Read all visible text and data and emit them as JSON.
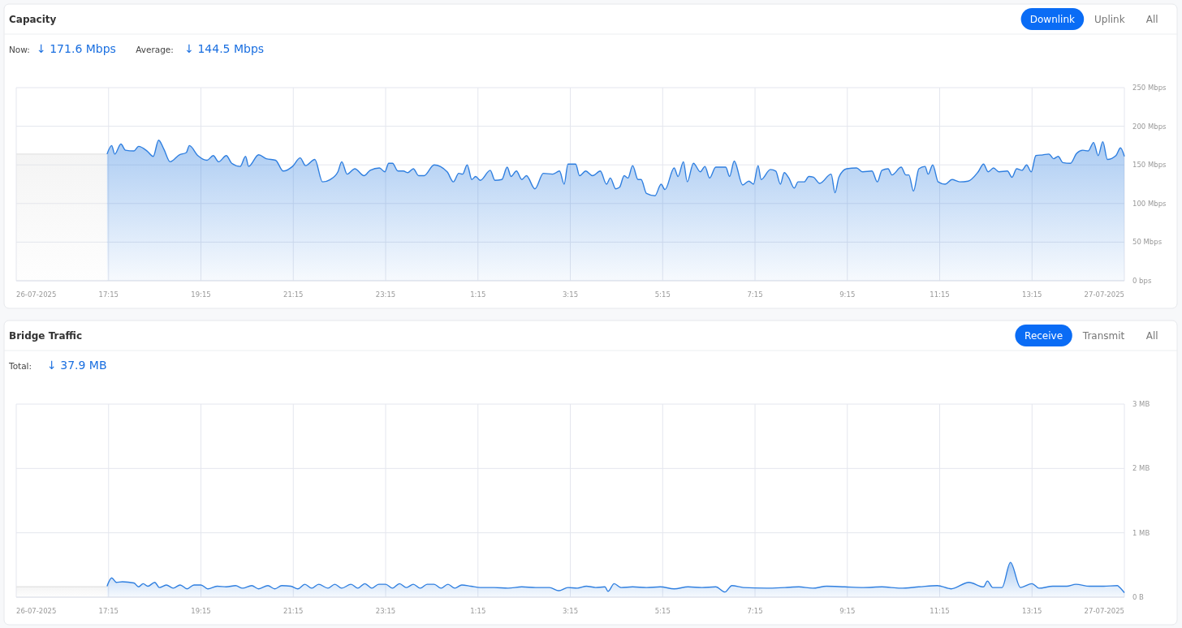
{
  "chart_data": [
    {
      "type": "area",
      "title": "Capacity",
      "annotations": [
        "Now:",
        "↓ 171.6 Mbps",
        "Average:",
        "↓ 144.5 Mbps",
        "Downlink",
        "Uplink",
        "All"
      ],
      "xlim": [
        "2025-07-26T15:15",
        "2025-07-27T15:15"
      ],
      "xticks": [
        {
          "value": "2025-07-26T15:15",
          "label": "26-07-2025"
        },
        {
          "value": "2025-07-26T17:15",
          "label": "17:15"
        },
        {
          "value": "2025-07-26T19:15",
          "label": "19:15"
        },
        {
          "value": "2025-07-26T21:15",
          "label": "21:15"
        },
        {
          "value": "2025-07-26T23:15",
          "label": "23:15"
        },
        {
          "value": "2025-07-27T01:15",
          "label": "1:15"
        },
        {
          "value": "2025-07-27T03:15",
          "label": "3:15"
        },
        {
          "value": "2025-07-27T05:15",
          "label": "5:15"
        },
        {
          "value": "2025-07-27T07:15",
          "label": "7:15"
        },
        {
          "value": "2025-07-27T09:15",
          "label": "9:15"
        },
        {
          "value": "2025-07-27T11:15",
          "label": "11:15"
        },
        {
          "value": "2025-07-27T13:15",
          "label": "13:15"
        },
        {
          "value": "2025-07-27T15:15",
          "label": "27-07-2025"
        }
      ],
      "ylim": [
        0,
        250
      ],
      "yticks": [
        {
          "value": 0,
          "label": "0 bps"
        },
        {
          "value": 50,
          "label": "50 Mbps"
        },
        {
          "value": 100,
          "label": "100 Mbps"
        },
        {
          "value": 150,
          "label": "150 Mbps"
        },
        {
          "value": 200,
          "label": "200 Mbps"
        },
        {
          "value": 250,
          "label": "250 Mbps"
        }
      ],
      "grid": true,
      "series": [
        {
          "color": "#e4e4e4",
          "x": [
            "2025-07-26T15:15",
            "2025-07-26T17:13"
          ],
          "values": [
            164,
            164
          ]
        },
        {
          "color": "#2f7fe0",
          "x": [
            "2025-07-26T17:13",
            "2025-07-26T17:19",
            "2025-07-26T17:23",
            "2025-07-26T17:31",
            "2025-07-26T17:37",
            "2025-07-26T17:48",
            "2025-07-26T17:54",
            "2025-07-26T18:05",
            "2025-07-26T18:13",
            "2025-07-26T18:20",
            "2025-07-26T18:27",
            "2025-07-26T18:35",
            "2025-07-26T18:47",
            "2025-07-26T18:56",
            "2025-07-26T19:00",
            "2025-07-26T19:11",
            "2025-07-26T19:23",
            "2025-07-26T19:31",
            "2025-07-26T19:38",
            "2025-07-26T19:48",
            "2025-07-26T19:55",
            "2025-07-26T20:06",
            "2025-07-26T20:13",
            "2025-07-26T20:17",
            "2025-07-26T20:30",
            "2025-07-26T20:40",
            "2025-07-26T20:52",
            "2025-07-26T21:02",
            "2025-07-26T21:14",
            "2025-07-26T21:24",
            "2025-07-26T21:31",
            "2025-07-26T21:43",
            "2025-07-26T21:53",
            "2025-07-26T22:03",
            "2025-07-26T22:13",
            "2025-07-26T22:18",
            "2025-07-26T22:25",
            "2025-07-26T22:35",
            "2025-07-26T22:47",
            "2025-07-26T22:55",
            "2025-07-26T23:07",
            "2025-07-26T23:14",
            "2025-07-26T23:19",
            "2025-07-26T23:24",
            "2025-07-26T23:31",
            "2025-07-26T23:38",
            "2025-07-26T23:44",
            "2025-07-26T23:51",
            "2025-07-26T23:58",
            "2025-07-27T00:05",
            "2025-07-27T00:18",
            "2025-07-27T00:35",
            "2025-07-27T00:43",
            "2025-07-27T00:50",
            "2025-07-27T00:55",
            "2025-07-27T01:01",
            "2025-07-27T01:07",
            "2025-07-27T01:12",
            "2025-07-27T01:18",
            "2025-07-27T01:31",
            "2025-07-27T01:37",
            "2025-07-27T01:46",
            "2025-07-27T01:53",
            "2025-07-27T01:58",
            "2025-07-27T02:05",
            "2025-07-27T02:12",
            "2025-07-27T02:18",
            "2025-07-27T02:29",
            "2025-07-27T02:40",
            "2025-07-27T02:52",
            "2025-07-27T03:01",
            "2025-07-27T03:07",
            "2025-07-27T03:12",
            "2025-07-27T03:22",
            "2025-07-27T03:27",
            "2025-07-27T03:35",
            "2025-07-27T03:44",
            "2025-07-27T03:54",
            "2025-07-27T04:02",
            "2025-07-27T04:07",
            "2025-07-27T04:14",
            "2025-07-27T04:19",
            "2025-07-27T04:25",
            "2025-07-27T04:30",
            "2025-07-27T04:36",
            "2025-07-27T04:43",
            "2025-07-27T04:47",
            "2025-07-27T04:54",
            "2025-07-27T05:05",
            "2025-07-27T05:13",
            "2025-07-27T05:18",
            "2025-07-27T05:30",
            "2025-07-27T05:35",
            "2025-07-27T05:42",
            "2025-07-27T05:47",
            "2025-07-27T05:55",
            "2025-07-27T06:04",
            "2025-07-27T06:10",
            "2025-07-27T06:16",
            "2025-07-27T06:24",
            "2025-07-27T06:37",
            "2025-07-27T06:42",
            "2025-07-27T06:48",
            "2025-07-27T06:59",
            "2025-07-27T07:07",
            "2025-07-27T07:13",
            "2025-07-27T07:19",
            "2025-07-27T07:23",
            "2025-07-27T07:35",
            "2025-07-27T07:42",
            "2025-07-27T07:48",
            "2025-07-27T07:53",
            "2025-07-27T07:59",
            "2025-07-27T08:06",
            "2025-07-27T08:11",
            "2025-07-27T08:19",
            "2025-07-27T08:25",
            "2025-07-27T08:31",
            "2025-07-27T08:39",
            "2025-07-27T08:54",
            "2025-07-27T08:59",
            "2025-07-27T09:04",
            "2025-07-27T09:14",
            "2025-07-27T09:27",
            "2025-07-27T09:35",
            "2025-07-27T09:47",
            "2025-07-27T09:54",
            "2025-07-27T10:00",
            "2025-07-27T10:08",
            "2025-07-27T10:13",
            "2025-07-27T10:25",
            "2025-07-27T10:31",
            "2025-07-27T10:35",
            "2025-07-27T10:41",
            "2025-07-27T10:48",
            "2025-07-27T10:56",
            "2025-07-27T11:00",
            "2025-07-27T11:06",
            "2025-07-27T11:13",
            "2025-07-27T11:22",
            "2025-07-27T11:31",
            "2025-07-27T11:41",
            "2025-07-27T11:52",
            "2025-07-27T12:05",
            "2025-07-27T12:12",
            "2025-07-27T12:18",
            "2025-07-27T12:25",
            "2025-07-27T12:32",
            "2025-07-27T12:43",
            "2025-07-27T12:49",
            "2025-07-27T12:55",
            "2025-07-27T13:02",
            "2025-07-27T13:08",
            "2025-07-27T13:14",
            "2025-07-27T13:20",
            "2025-07-27T13:29",
            "2025-07-27T13:37",
            "2025-07-27T13:43",
            "2025-07-27T13:49",
            "2025-07-27T13:55",
            "2025-07-27T14:05",
            "2025-07-27T14:13",
            "2025-07-27T14:21",
            "2025-07-27T14:28",
            "2025-07-27T14:35",
            "2025-07-27T14:41",
            "2025-07-27T14:47",
            "2025-07-27T14:53",
            "2025-07-27T15:04",
            "2025-07-27T15:10",
            "2025-07-27T15:15"
          ],
          "values": [
            164,
            175,
            164,
            177,
            169,
            168,
            174,
            168,
            161,
            182,
            170,
            154,
            163,
            166,
            175,
            162,
            156,
            162,
            154,
            162,
            152,
            148,
            161,
            148,
            163,
            158,
            156,
            142,
            148,
            159,
            149,
            157,
            128,
            131,
            141,
            154,
            138,
            145,
            136,
            143,
            146,
            141,
            152,
            152,
            142,
            142,
            140,
            145,
            136,
            136,
            150,
            141,
            128,
            139,
            138,
            150,
            131,
            135,
            130,
            143,
            130,
            131,
            147,
            135,
            142,
            131,
            136,
            119,
            139,
            138,
            142,
            125,
            151,
            151,
            136,
            142,
            136,
            142,
            125,
            133,
            119,
            121,
            136,
            133,
            149,
            131,
            131,
            113,
            110,
            125,
            118,
            146,
            135,
            154,
            128,
            152,
            141,
            148,
            133,
            147,
            147,
            135,
            155,
            124,
            129,
            125,
            149,
            131,
            144,
            142,
            125,
            140,
            133,
            120,
            128,
            128,
            135,
            134,
            126,
            138,
            114,
            134,
            145,
            146,
            141,
            142,
            128,
            143,
            145,
            137,
            147,
            137,
            137,
            116,
            145,
            148,
            138,
            150,
            128,
            125,
            131,
            128,
            129,
            141,
            151,
            141,
            146,
            141,
            142,
            134,
            145,
            143,
            150,
            141,
            162,
            163,
            164,
            158,
            161,
            153,
            152,
            165,
            169,
            168,
            179,
            162,
            180,
            157,
            162,
            172,
            161
          ]
        }
      ]
    },
    {
      "type": "area",
      "title": "Bridge Traffic",
      "annotations": [
        "Total:",
        "↓ 37.9 MB",
        "Receive",
        "Transmit",
        "All"
      ],
      "xlim": [
        "2025-07-26T15:15",
        "2025-07-27T15:15"
      ],
      "xticks": [
        {
          "value": "2025-07-26T15:15",
          "label": "26-07-2025"
        },
        {
          "value": "2025-07-26T17:15",
          "label": "17:15"
        },
        {
          "value": "2025-07-26T19:15",
          "label": "19:15"
        },
        {
          "value": "2025-07-26T21:15",
          "label": "21:15"
        },
        {
          "value": "2025-07-26T23:15",
          "label": "23:15"
        },
        {
          "value": "2025-07-27T01:15",
          "label": "1:15"
        },
        {
          "value": "2025-07-27T03:15",
          "label": "3:15"
        },
        {
          "value": "2025-07-27T05:15",
          "label": "5:15"
        },
        {
          "value": "2025-07-27T07:15",
          "label": "7:15"
        },
        {
          "value": "2025-07-27T09:15",
          "label": "9:15"
        },
        {
          "value": "2025-07-27T11:15",
          "label": "11:15"
        },
        {
          "value": "2025-07-27T13:15",
          "label": "13:15"
        },
        {
          "value": "2025-07-27T15:15",
          "label": "27-07-2025"
        }
      ],
      "ylim": [
        0,
        3
      ],
      "yticks": [
        {
          "value": 0,
          "label": "0 B"
        },
        {
          "value": 1,
          "label": "1 MB"
        },
        {
          "value": 2,
          "label": "2 MB"
        },
        {
          "value": 3,
          "label": "3 MB"
        }
      ],
      "grid": true,
      "series": [
        {
          "color": "#e4e4e4",
          "x": [
            "2025-07-26T15:15",
            "2025-07-26T17:13"
          ],
          "values": [
            0.16,
            0.16
          ]
        },
        {
          "color": "#2f7fe0",
          "x": [
            "2025-07-26T17:13",
            "2025-07-26T17:19",
            "2025-07-26T17:25",
            "2025-07-26T17:33",
            "2025-07-26T17:48",
            "2025-07-26T17:54",
            "2025-07-26T18:00",
            "2025-07-26T18:06",
            "2025-07-26T18:15",
            "2025-07-26T18:21",
            "2025-07-26T18:30",
            "2025-07-26T18:39",
            "2025-07-26T18:48",
            "2025-07-26T18:57",
            "2025-07-26T19:06",
            "2025-07-26T19:15",
            "2025-07-26T19:24",
            "2025-07-26T19:36",
            "2025-07-26T19:48",
            "2025-07-26T20:00",
            "2025-07-26T20:09",
            "2025-07-26T20:21",
            "2025-07-26T20:30",
            "2025-07-26T20:42",
            "2025-07-26T20:51",
            "2025-07-26T21:00",
            "2025-07-26T21:12",
            "2025-07-26T21:21",
            "2025-07-26T21:30",
            "2025-07-26T21:39",
            "2025-07-26T21:48",
            "2025-07-26T22:00",
            "2025-07-26T22:09",
            "2025-07-26T22:18",
            "2025-07-26T22:30",
            "2025-07-26T22:39",
            "2025-07-26T22:48",
            "2025-07-26T22:57",
            "2025-07-26T23:06",
            "2025-07-26T23:15",
            "2025-07-26T23:24",
            "2025-07-26T23:33",
            "2025-07-26T23:42",
            "2025-07-26T23:51",
            "2025-07-27T00:00",
            "2025-07-27T00:09",
            "2025-07-27T00:18",
            "2025-07-27T00:27",
            "2025-07-27T00:36",
            "2025-07-27T00:45",
            "2025-07-27T00:54",
            "2025-07-27T01:06",
            "2025-07-27T01:18",
            "2025-07-27T01:36",
            "2025-07-27T01:54",
            "2025-07-27T02:12",
            "2025-07-27T02:30",
            "2025-07-27T02:48",
            "2025-07-27T03:00",
            "2025-07-27T03:12",
            "2025-07-27T03:24",
            "2025-07-27T03:36",
            "2025-07-27T03:48",
            "2025-07-27T04:00",
            "2025-07-27T04:04",
            "2025-07-27T04:12",
            "2025-07-27T04:21",
            "2025-07-27T04:36",
            "2025-07-27T04:54",
            "2025-07-27T05:12",
            "2025-07-27T05:30",
            "2025-07-27T05:48",
            "2025-07-27T06:06",
            "2025-07-27T06:24",
            "2025-07-27T06:36",
            "2025-07-27T06:45",
            "2025-07-27T07:00",
            "2025-07-27T07:30",
            "2025-07-27T07:54",
            "2025-07-27T08:12",
            "2025-07-27T08:30",
            "2025-07-27T08:48",
            "2025-07-27T09:12",
            "2025-07-27T09:36",
            "2025-07-27T10:00",
            "2025-07-27T10:24",
            "2025-07-27T10:48",
            "2025-07-27T11:12",
            "2025-07-27T11:30",
            "2025-07-27T11:53",
            "2025-07-27T12:12",
            "2025-07-27T12:17",
            "2025-07-27T12:24",
            "2025-07-27T12:36",
            "2025-07-27T12:47",
            "2025-07-27T13:00",
            "2025-07-27T13:15",
            "2025-07-27T13:24",
            "2025-07-27T13:42",
            "2025-07-27T14:00",
            "2025-07-27T14:12",
            "2025-07-27T14:30",
            "2025-07-27T14:48",
            "2025-07-27T15:06",
            "2025-07-27T15:09",
            "2025-07-27T15:15"
          ],
          "values": [
            0.17,
            0.3,
            0.23,
            0.24,
            0.22,
            0.16,
            0.21,
            0.17,
            0.23,
            0.15,
            0.19,
            0.14,
            0.19,
            0.13,
            0.19,
            0.19,
            0.13,
            0.17,
            0.16,
            0.18,
            0.14,
            0.18,
            0.13,
            0.18,
            0.13,
            0.18,
            0.17,
            0.13,
            0.2,
            0.14,
            0.2,
            0.14,
            0.2,
            0.14,
            0.2,
            0.14,
            0.21,
            0.14,
            0.2,
            0.2,
            0.14,
            0.21,
            0.15,
            0.2,
            0.14,
            0.2,
            0.2,
            0.14,
            0.2,
            0.14,
            0.19,
            0.17,
            0.15,
            0.15,
            0.14,
            0.16,
            0.15,
            0.15,
            0.1,
            0.15,
            0.14,
            0.17,
            0.15,
            0.16,
            0.09,
            0.21,
            0.15,
            0.16,
            0.15,
            0.16,
            0.13,
            0.16,
            0.15,
            0.16,
            0.08,
            0.18,
            0.15,
            0.14,
            0.15,
            0.16,
            0.14,
            0.17,
            0.16,
            0.15,
            0.16,
            0.14,
            0.16,
            0.18,
            0.13,
            0.23,
            0.16,
            0.25,
            0.15,
            0.15,
            0.54,
            0.15,
            0.21,
            0.14,
            0.17,
            0.17,
            0.2,
            0.17,
            0.17,
            0.18,
            0.15,
            0.07
          ]
        }
      ]
    }
  ]
}
